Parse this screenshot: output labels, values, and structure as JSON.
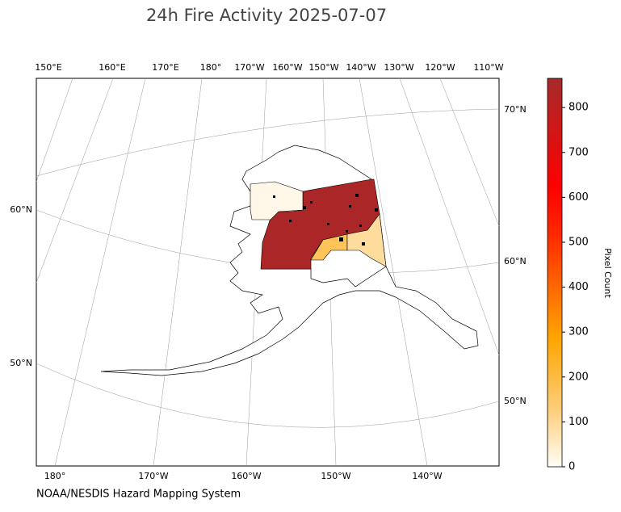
{
  "title": "24h Fire Activity 2025-07-07",
  "footer": "NOAA/NESDIS Hazard Mapping System",
  "top_labels": [
    "150°E",
    "160°E",
    "170°E",
    "180°",
    "170°W",
    "160°W",
    "150°W",
    "140°W",
    "130°W",
    "120°W",
    "110°W"
  ],
  "bottom_labels": [
    "180°",
    "170°W",
    "160°W",
    "150°W",
    "140°W"
  ],
  "left_labels": [
    "60°N",
    "50°N"
  ],
  "right_labels": [
    "70°N",
    "60°N",
    "50°N"
  ],
  "colorbar": {
    "label": "Pixel Count",
    "lim": [
      0,
      865
    ],
    "ticks": [
      0,
      100,
      200,
      300,
      400,
      500,
      600,
      700,
      800
    ]
  },
  "regions": [
    {
      "value": 850
    },
    {
      "value": 15
    },
    {
      "value": 170
    },
    {
      "value": 90
    }
  ]
}
